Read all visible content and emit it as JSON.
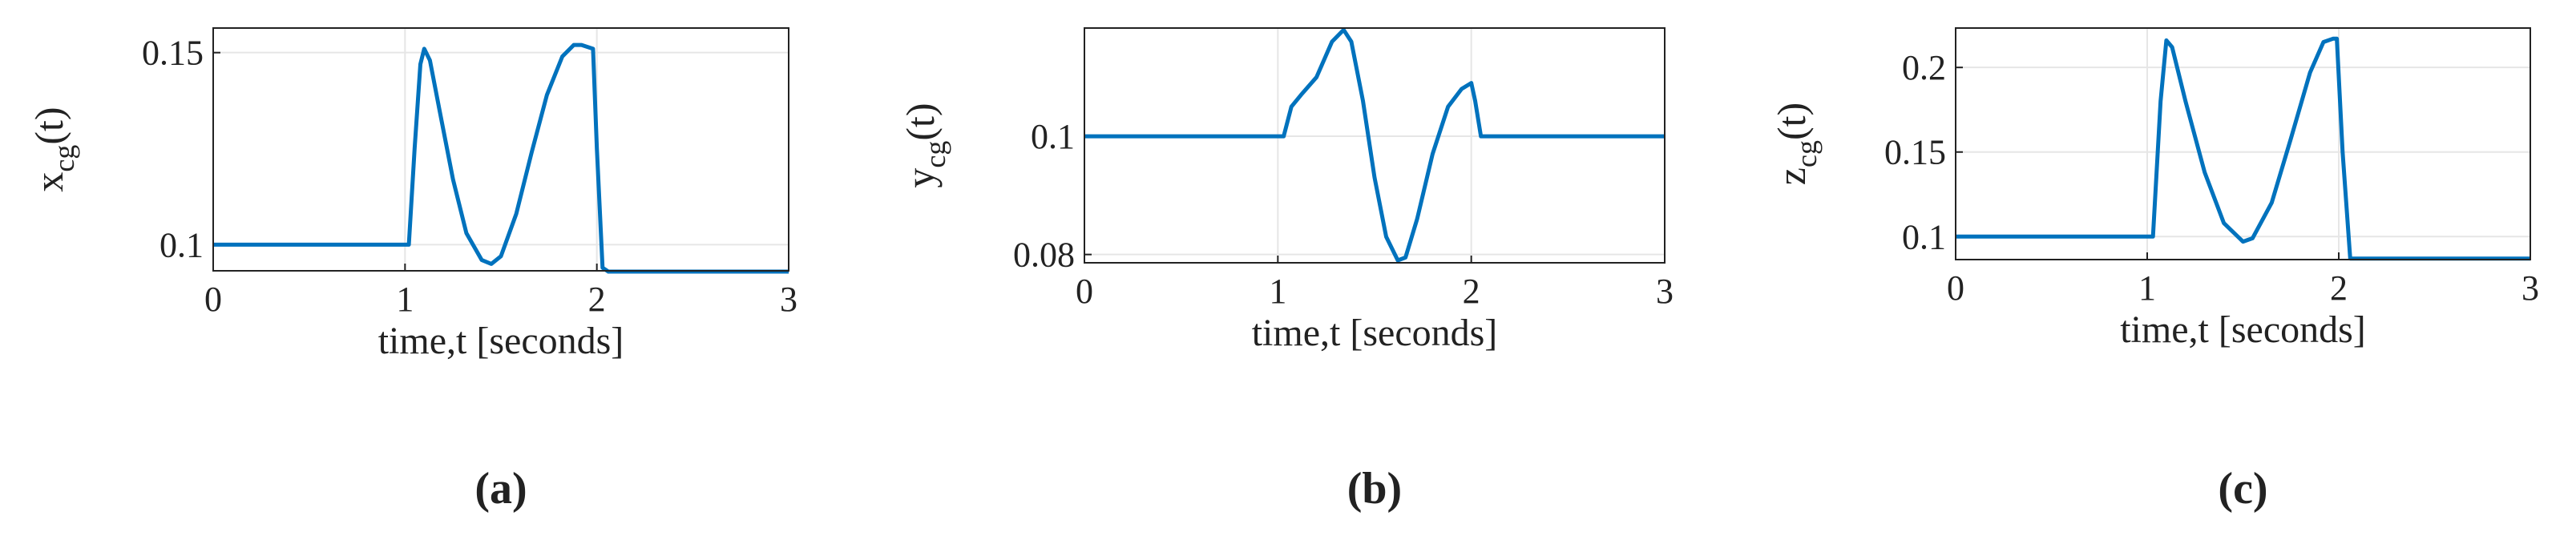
{
  "chart_data": [
    {
      "type": "line",
      "caption": "(a)",
      "ylabel": [
        "x",
        "cg",
        "(t)"
      ],
      "xlabel": "time,t [seconds]",
      "xlim": [
        0,
        3
      ],
      "xticks": [
        0,
        1,
        2,
        3
      ],
      "ylim": [
        0.0932,
        0.1564
      ],
      "yticks": [
        0.1,
        0.15
      ],
      "grid": true,
      "series": [
        {
          "color": "#0072BD",
          "x": [
            0,
            1,
            1.02,
            1.05,
            1.08,
            1.1,
            1.13,
            1.18,
            1.25,
            1.32,
            1.4,
            1.45,
            1.5,
            1.58,
            1.66,
            1.74,
            1.82,
            1.88,
            1.92,
            1.98,
            2.0,
            2.03,
            2.06,
            2.5,
            3
          ],
          "values": [
            0.1,
            0.1,
            0.1,
            0.125,
            0.147,
            0.151,
            0.148,
            0.135,
            0.117,
            0.103,
            0.096,
            0.095,
            0.097,
            0.108,
            0.124,
            0.139,
            0.149,
            0.152,
            0.152,
            0.151,
            0.125,
            0.094,
            0.093,
            0.093,
            0.093
          ]
        }
      ]
    },
    {
      "type": "line",
      "caption": "(b)",
      "ylabel": [
        "y",
        "cg",
        "(t)"
      ],
      "xlabel": "time,t [seconds]",
      "xlim": [
        0,
        3
      ],
      "xticks": [
        0,
        1,
        2,
        3
      ],
      "ylim": [
        0.0786,
        0.1183
      ],
      "yticks": [
        0.08,
        0.1
      ],
      "grid": true,
      "series": [
        {
          "color": "#0072BD",
          "x": [
            0,
            1,
            1.03,
            1.07,
            1.12,
            1.2,
            1.28,
            1.34,
            1.38,
            1.44,
            1.5,
            1.56,
            1.62,
            1.66,
            1.72,
            1.8,
            1.88,
            1.95,
            2.0,
            2.02,
            2.05,
            2.1,
            3
          ],
          "values": [
            0.1,
            0.1,
            0.1,
            0.105,
            0.107,
            0.11,
            0.116,
            0.118,
            0.116,
            0.106,
            0.093,
            0.083,
            0.079,
            0.0795,
            0.086,
            0.097,
            0.105,
            0.108,
            0.109,
            0.106,
            0.1,
            0.1,
            0.1
          ]
        }
      ]
    },
    {
      "type": "line",
      "caption": "(c)",
      "ylabel": [
        "z",
        "cg",
        "(t)"
      ],
      "xlabel": "time,t [seconds]",
      "xlim": [
        0,
        3
      ],
      "xticks": [
        0,
        1,
        2,
        3
      ],
      "ylim": [
        0.0864,
        0.2233
      ],
      "yticks": [
        0.1,
        0.15,
        0.2
      ],
      "grid": true,
      "series": [
        {
          "color": "#0072BD",
          "x": [
            0,
            1,
            1.03,
            1.07,
            1.1,
            1.13,
            1.2,
            1.3,
            1.4,
            1.5,
            1.55,
            1.65,
            1.75,
            1.85,
            1.92,
            1.97,
            1.99,
            2.02,
            2.06,
            2.5,
            3
          ],
          "values": [
            0.1,
            0.1,
            0.1,
            0.18,
            0.216,
            0.212,
            0.18,
            0.138,
            0.108,
            0.097,
            0.099,
            0.12,
            0.158,
            0.197,
            0.215,
            0.217,
            0.217,
            0.15,
            0.087,
            0.087,
            0.087
          ]
        }
      ]
    }
  ]
}
